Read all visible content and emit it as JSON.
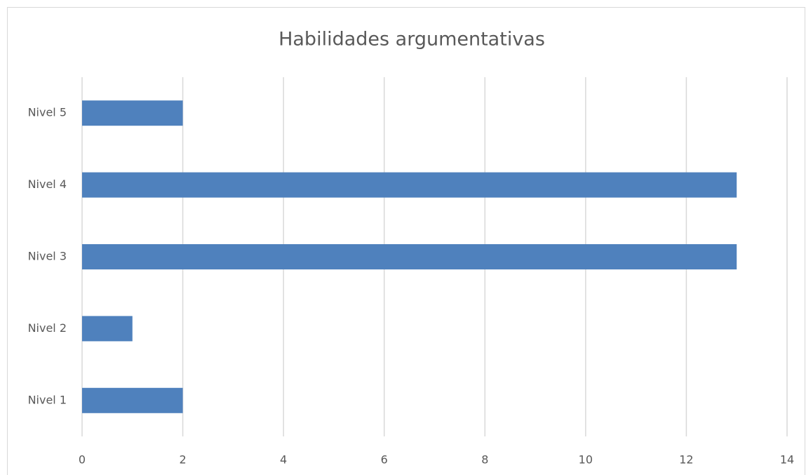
{
  "chart_data": {
    "type": "bar",
    "orientation": "horizontal",
    "title": "Habilidades argumentativas",
    "categories": [
      "Nivel 1",
      "Nivel 2",
      "Nivel 3",
      "Nivel 4",
      "Nivel 5"
    ],
    "values": [
      2,
      1,
      13,
      13,
      2
    ],
    "color": "#4f81bd",
    "xlim": [
      0,
      14
    ],
    "xticks": [
      0,
      2,
      4,
      6,
      8,
      10,
      12,
      14
    ],
    "grid": true
  }
}
